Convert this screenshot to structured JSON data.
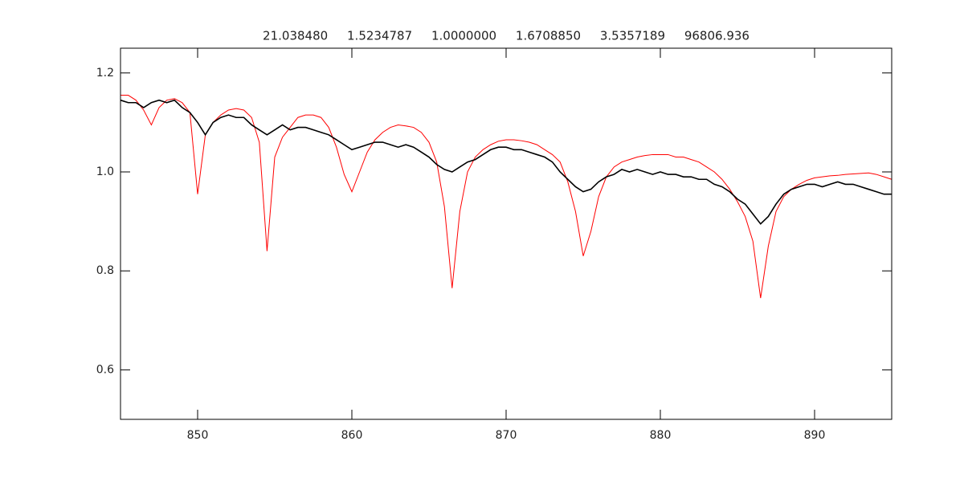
{
  "chart_data": {
    "type": "line",
    "title": "21.038480     1.5234787     1.0000000     1.6708850     3.5357189     96806.936",
    "x": [
      845,
      845.5,
      846,
      846.5,
      847,
      847.5,
      848,
      848.5,
      849,
      849.5,
      850,
      850.5,
      851,
      851.5,
      852,
      852.5,
      853,
      853.5,
      854,
      854.5,
      855,
      855.5,
      856,
      856.5,
      857,
      857.5,
      858,
      858.5,
      859,
      859.5,
      860,
      860.5,
      861,
      861.5,
      862,
      862.5,
      863,
      863.5,
      864,
      864.5,
      865,
      865.5,
      866,
      866.5,
      867,
      867.5,
      868,
      868.5,
      869,
      869.5,
      870,
      870.5,
      871,
      871.5,
      872,
      872.5,
      873,
      873.5,
      874,
      874.5,
      875,
      875.5,
      876,
      876.5,
      877,
      877.5,
      878,
      878.5,
      879,
      879.5,
      880,
      880.5,
      881,
      881.5,
      882,
      882.5,
      883,
      883.5,
      884,
      884.5,
      885,
      885.5,
      886,
      886.5,
      887,
      887.5,
      888,
      888.5,
      889,
      889.5,
      890,
      890.5,
      891,
      891.5,
      892,
      892.5,
      893,
      893.5,
      894,
      894.5,
      895
    ],
    "series": [
      {
        "color": "#ff0000",
        "values": [
          1.155,
          1.155,
          1.145,
          1.125,
          1.095,
          1.13,
          1.145,
          1.148,
          1.14,
          1.12,
          0.955,
          1.075,
          1.1,
          1.115,
          1.125,
          1.128,
          1.125,
          1.11,
          1.06,
          0.84,
          1.03,
          1.07,
          1.09,
          1.11,
          1.115,
          1.115,
          1.11,
          1.09,
          1.05,
          0.995,
          0.96,
          1.0,
          1.04,
          1.065,
          1.08,
          1.09,
          1.095,
          1.093,
          1.09,
          1.08,
          1.06,
          1.02,
          0.93,
          0.765,
          0.92,
          1.0,
          1.03,
          1.045,
          1.055,
          1.062,
          1.065,
          1.065,
          1.063,
          1.06,
          1.055,
          1.045,
          1.035,
          1.02,
          0.98,
          0.92,
          0.83,
          0.88,
          0.95,
          0.99,
          1.01,
          1.02,
          1.025,
          1.03,
          1.033,
          1.035,
          1.035,
          1.035,
          1.03,
          1.03,
          1.025,
          1.02,
          1.01,
          1.0,
          0.985,
          0.965,
          0.94,
          0.91,
          0.86,
          0.745,
          0.85,
          0.92,
          0.95,
          0.965,
          0.975,
          0.983,
          0.988,
          0.99,
          0.992,
          0.993,
          0.995,
          0.996,
          0.997,
          0.998,
          0.995,
          0.99,
          0.985
        ]
      },
      {
        "color": "#000000",
        "values": [
          1.145,
          1.14,
          1.14,
          1.13,
          1.14,
          1.145,
          1.14,
          1.145,
          1.13,
          1.12,
          1.1,
          1.075,
          1.1,
          1.11,
          1.115,
          1.11,
          1.11,
          1.095,
          1.085,
          1.075,
          1.085,
          1.095,
          1.085,
          1.09,
          1.09,
          1.085,
          1.08,
          1.075,
          1.065,
          1.055,
          1.045,
          1.05,
          1.055,
          1.06,
          1.06,
          1.055,
          1.05,
          1.055,
          1.05,
          1.04,
          1.03,
          1.015,
          1.005,
          1.0,
          1.01,
          1.02,
          1.025,
          1.035,
          1.045,
          1.05,
          1.05,
          1.045,
          1.045,
          1.04,
          1.035,
          1.03,
          1.02,
          1.0,
          0.985,
          0.97,
          0.96,
          0.965,
          0.98,
          0.99,
          0.995,
          1.005,
          1.0,
          1.005,
          1.0,
          0.995,
          1.0,
          0.995,
          0.995,
          0.99,
          0.99,
          0.985,
          0.985,
          0.975,
          0.97,
          0.96,
          0.945,
          0.935,
          0.915,
          0.895,
          0.91,
          0.935,
          0.955,
          0.965,
          0.97,
          0.975,
          0.975,
          0.97,
          0.975,
          0.98,
          0.975,
          0.975,
          0.97,
          0.965,
          0.96,
          0.955,
          0.955
        ]
      }
    ],
    "xlim": [
      845,
      895
    ],
    "xticks": [
      850,
      860,
      870,
      880,
      890
    ],
    "ylim": [
      0.5,
      1.25
    ],
    "yticks": [
      0.6,
      0.8,
      {
        "value": 1.0,
        "label": "1.0"
      },
      1.2
    ]
  }
}
